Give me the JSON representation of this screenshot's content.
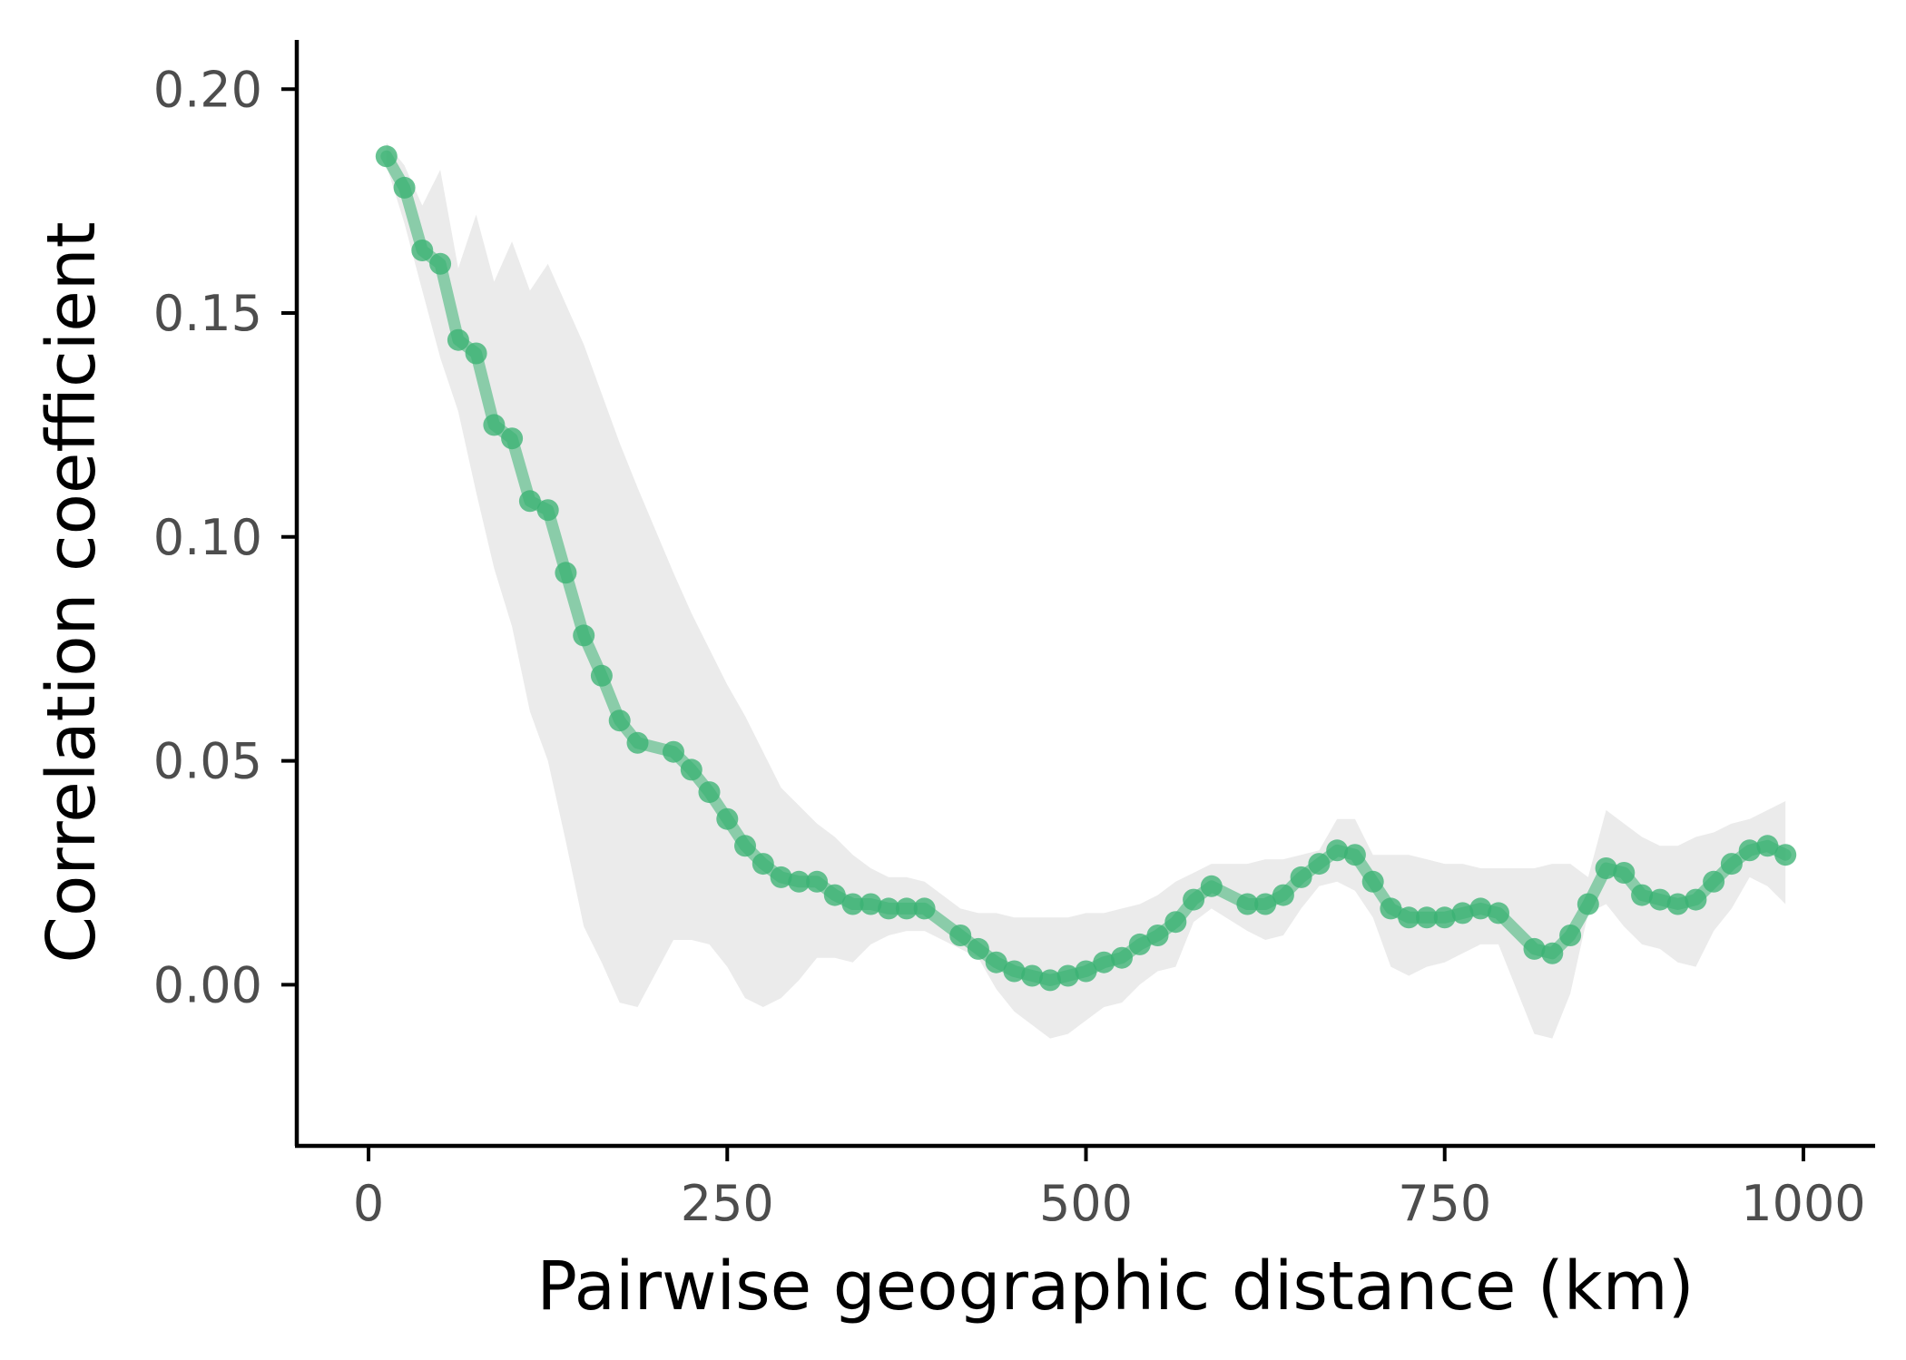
{
  "chart_data": {
    "type": "line",
    "xlabel": "Pairwise geographic distance (km)",
    "ylabel": "Correlation coefficient",
    "xlim": [
      -50,
      1050
    ],
    "ylim": [
      -0.036,
      0.211
    ],
    "x_ticks": [
      0,
      250,
      500,
      750,
      1000
    ],
    "x_tick_labels": [
      "0",
      "250",
      "500",
      "750",
      "1000"
    ],
    "y_ticks": [
      0.0,
      0.05,
      0.1,
      0.15,
      0.2
    ],
    "y_tick_labels": [
      "0.00",
      "0.05",
      "0.10",
      "0.15",
      "0.20"
    ],
    "grid": false,
    "legend": "none",
    "colors": {
      "line": "#3bb273",
      "band": "#ebebeb",
      "axis": "#000000"
    },
    "series": [
      {
        "x": [
          12.5,
          25,
          37.5,
          50,
          62.5,
          75,
          87.5,
          100,
          112.5,
          125,
          137.5,
          150,
          162.5,
          175,
          187.5,
          212.5,
          225,
          237.5,
          250,
          262.5,
          275,
          287.5,
          300,
          312.5,
          325,
          337.5,
          350,
          362.5,
          375,
          387.5,
          412.5,
          425,
          437.5,
          450,
          462.5,
          475,
          487.5,
          500,
          512.5,
          525,
          537.5,
          550,
          562.5,
          575,
          587.5,
          612.5,
          625,
          637.5,
          650,
          662.5,
          675,
          687.5,
          700,
          712.5,
          725,
          737.5,
          750,
          762.5,
          775,
          787.5,
          812.5,
          825,
          837.5,
          850,
          862.5,
          875,
          887.5,
          900,
          912.5,
          925,
          937.5,
          950,
          962.5,
          975,
          987.5
        ],
        "y": [
          0.185,
          0.178,
          0.164,
          0.161,
          0.144,
          0.141,
          0.125,
          0.122,
          0.108,
          0.106,
          0.092,
          0.078,
          0.069,
          0.059,
          0.054,
          0.052,
          0.048,
          0.043,
          0.037,
          0.031,
          0.027,
          0.024,
          0.023,
          0.023,
          0.02,
          0.018,
          0.018,
          0.017,
          0.017,
          0.017,
          0.011,
          0.008,
          0.005,
          0.003,
          0.002,
          0.001,
          0.002,
          0.003,
          0.005,
          0.006,
          0.009,
          0.011,
          0.014,
          0.019,
          0.022,
          0.018,
          0.018,
          0.02,
          0.024,
          0.027,
          0.03,
          0.029,
          0.023,
          0.017,
          0.015,
          0.015,
          0.015,
          0.016,
          0.017,
          0.016,
          0.008,
          0.007,
          0.011,
          0.018,
          0.026,
          0.025,
          0.02,
          0.019,
          0.018,
          0.019,
          0.023,
          0.027,
          0.03,
          0.031,
          0.029
        ]
      }
    ],
    "band": {
      "x": [
        12.5,
        25,
        37.5,
        50,
        62.5,
        75,
        87.5,
        100,
        112.5,
        125,
        137.5,
        150,
        162.5,
        175,
        187.5,
        212.5,
        225,
        237.5,
        250,
        262.5,
        275,
        287.5,
        300,
        312.5,
        325,
        337.5,
        350,
        362.5,
        375,
        387.5,
        412.5,
        425,
        437.5,
        450,
        462.5,
        475,
        487.5,
        500,
        512.5,
        525,
        537.5,
        550,
        562.5,
        575,
        587.5,
        612.5,
        625,
        637.5,
        650,
        662.5,
        675,
        687.5,
        700,
        712.5,
        725,
        737.5,
        750,
        762.5,
        775,
        787.5,
        812.5,
        825,
        837.5,
        850,
        862.5,
        875,
        887.5,
        900,
        912.5,
        925,
        937.5,
        950,
        962.5,
        975,
        987.5
      ],
      "lower": [
        0.183,
        0.17,
        0.155,
        0.14,
        0.128,
        0.11,
        0.093,
        0.08,
        0.061,
        0.05,
        0.032,
        0.013,
        0.005,
        -0.004,
        -0.005,
        0.01,
        0.01,
        0.009,
        0.004,
        -0.003,
        -0.005,
        -0.003,
        0.001,
        0.006,
        0.006,
        0.005,
        0.009,
        0.011,
        0.012,
        0.012,
        0.008,
        0.006,
        -0.001,
        -0.006,
        -0.009,
        -0.012,
        -0.011,
        -0.008,
        -0.005,
        -0.004,
        0.0,
        0.003,
        0.004,
        0.014,
        0.017,
        0.012,
        0.01,
        0.011,
        0.017,
        0.022,
        0.023,
        0.021,
        0.015,
        0.004,
        0.002,
        0.004,
        0.005,
        0.007,
        0.009,
        0.009,
        -0.011,
        -0.012,
        -0.002,
        0.016,
        0.018,
        0.013,
        0.009,
        0.008,
        0.005,
        0.004,
        0.012,
        0.017,
        0.024,
        0.022,
        0.018
      ],
      "upper": [
        0.188,
        0.183,
        0.174,
        0.182,
        0.16,
        0.172,
        0.157,
        0.166,
        0.155,
        0.161,
        0.152,
        0.143,
        0.132,
        0.121,
        0.111,
        0.092,
        0.083,
        0.075,
        0.067,
        0.06,
        0.052,
        0.044,
        0.04,
        0.036,
        0.033,
        0.029,
        0.026,
        0.024,
        0.024,
        0.023,
        0.017,
        0.016,
        0.016,
        0.015,
        0.015,
        0.015,
        0.015,
        0.016,
        0.016,
        0.017,
        0.018,
        0.02,
        0.023,
        0.025,
        0.027,
        0.027,
        0.028,
        0.028,
        0.029,
        0.03,
        0.037,
        0.037,
        0.029,
        0.029,
        0.029,
        0.028,
        0.027,
        0.027,
        0.026,
        0.026,
        0.026,
        0.027,
        0.027,
        0.024,
        0.039,
        0.036,
        0.033,
        0.031,
        0.031,
        0.033,
        0.034,
        0.036,
        0.037,
        0.039,
        0.041
      ]
    }
  }
}
